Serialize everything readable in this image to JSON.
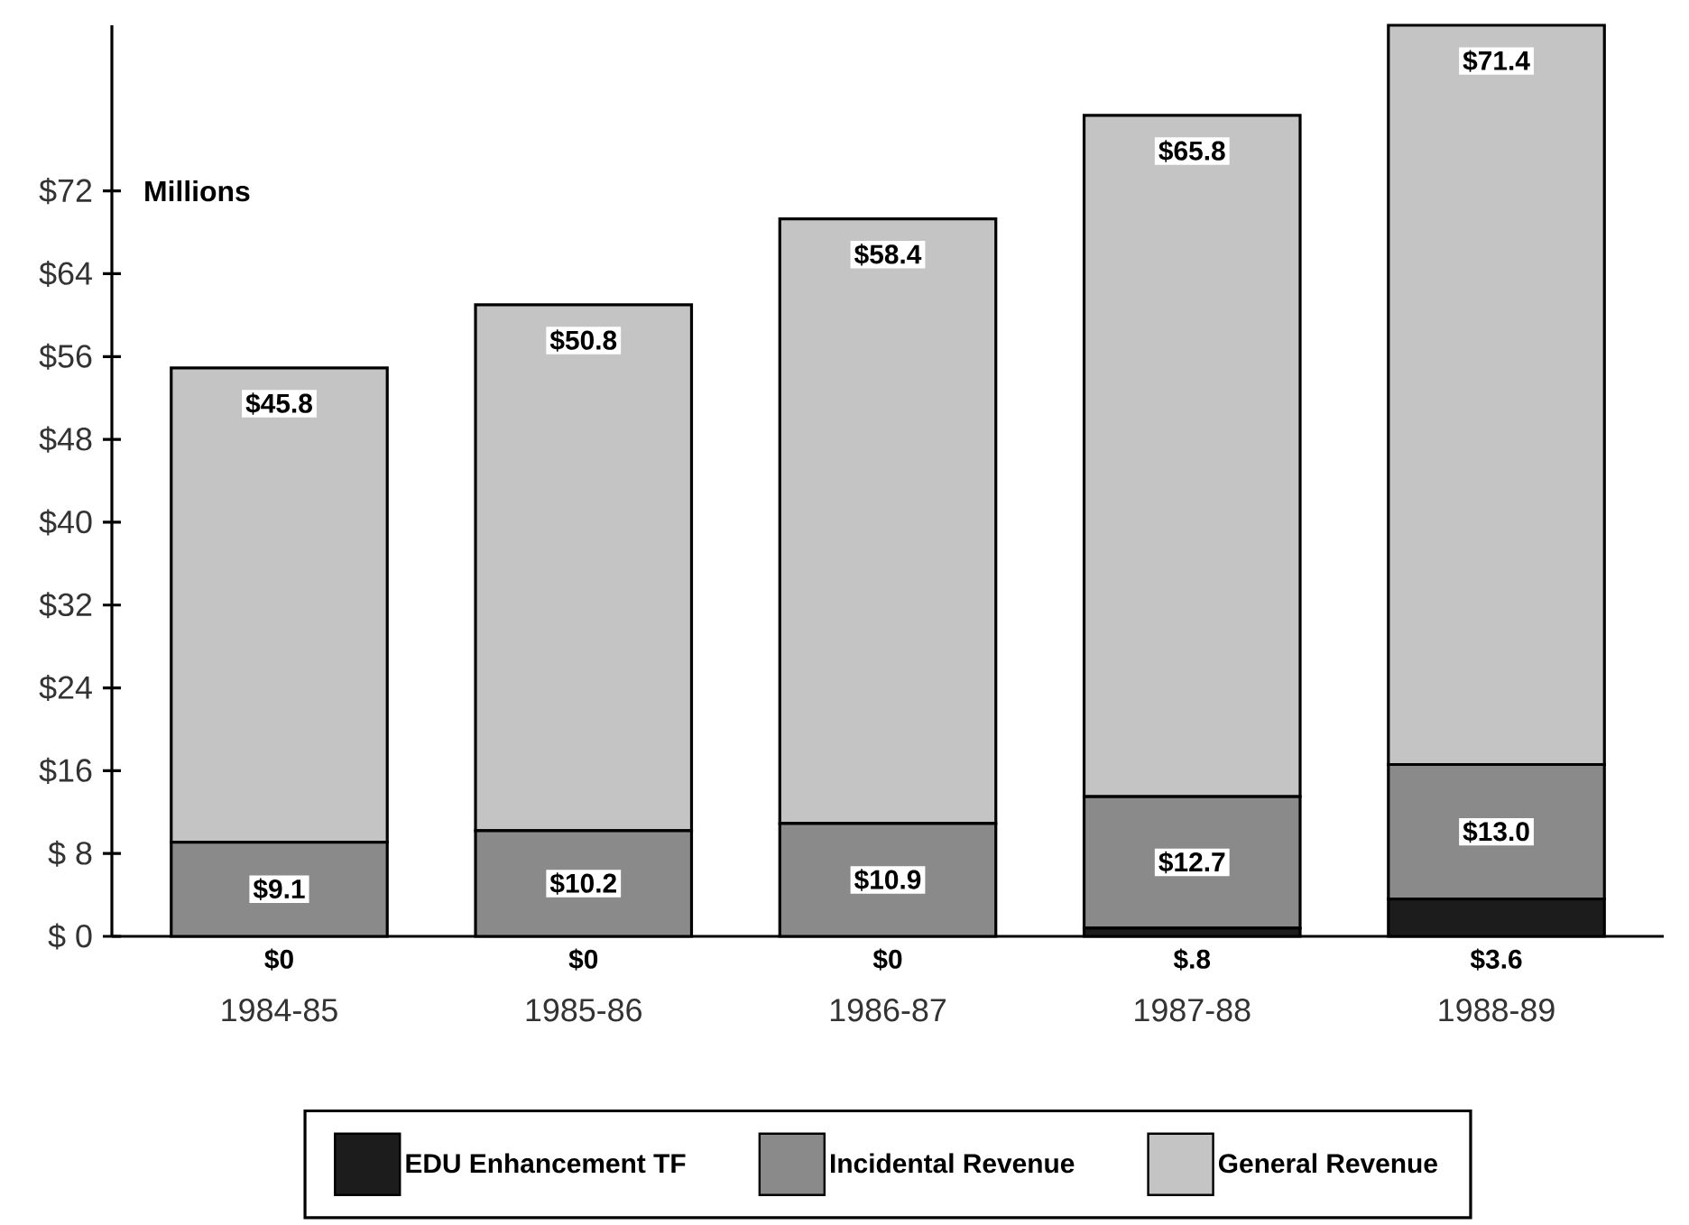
{
  "chart_data": {
    "type": "bar",
    "stacked": true,
    "ylabel": "Millions",
    "categories": [
      "1984-85",
      "1985-86",
      "1986-87",
      "1987-88",
      "1988-89"
    ],
    "series": [
      {
        "name": "EDU Enhancement TF",
        "color": "#1c1c1c",
        "values": [
          0,
          0,
          0,
          0.8,
          3.6
        ],
        "value_labels": [
          "$0",
          "$0",
          "$0",
          "$.8",
          "$3.6"
        ]
      },
      {
        "name": "Incidental Revenue",
        "color": "#8a8a8a",
        "values": [
          9.1,
          10.2,
          10.9,
          12.7,
          13.0
        ],
        "value_labels": [
          "$9.1",
          "$10.2",
          "$10.9",
          "$12.7",
          "$13.0"
        ]
      },
      {
        "name": "General Revenue",
        "color": "#c4c4c4",
        "values": [
          45.8,
          50.8,
          58.4,
          65.8,
          71.4
        ],
        "value_labels": [
          "$45.8",
          "$50.8",
          "$58.4",
          "$65.8",
          "$71.4"
        ]
      }
    ],
    "ylim": [
      0,
      88
    ],
    "yticks": [
      {
        "value": 0,
        "label": "$ 0"
      },
      {
        "value": 8,
        "label": "$ 8"
      },
      {
        "value": 16,
        "label": "$16"
      },
      {
        "value": 24,
        "label": "$24"
      },
      {
        "value": 32,
        "label": "$32"
      },
      {
        "value": 40,
        "label": "$40"
      },
      {
        "value": 48,
        "label": "$48"
      },
      {
        "value": 56,
        "label": "$56"
      },
      {
        "value": 64,
        "label": "$64"
      },
      {
        "value": 72,
        "label": "$72"
      }
    ],
    "legend": "bottom"
  }
}
